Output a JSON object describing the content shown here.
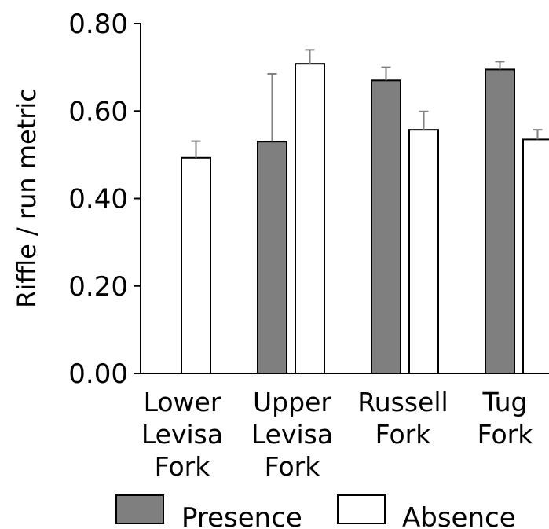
{
  "chart_data": {
    "type": "bar",
    "categories": [
      [
        "Lower",
        "Levisa",
        "Fork"
      ],
      [
        "Upper",
        "Levisa",
        "Fork"
      ],
      [
        "Russell",
        "Fork"
      ],
      [
        "Tug",
        "Fork"
      ]
    ],
    "ylabel": "Riffle / run metric",
    "ylim": [
      0,
      0.8
    ],
    "yticks": [
      "0.00",
      "0.20",
      "0.40",
      "0.60",
      "0.80"
    ],
    "grid": false,
    "legend_position": "bottom",
    "series": [
      {
        "name": "Presence",
        "color": "#7f7f7f",
        "values": [
          null,
          0.53,
          0.67,
          0.695
        ],
        "errors": [
          null,
          0.155,
          0.03,
          0.018
        ]
      },
      {
        "name": "Absence",
        "color": "#ffffff",
        "values": [
          0.493,
          0.708,
          0.557,
          0.535
        ],
        "errors": [
          0.038,
          0.032,
          0.042,
          0.022
        ]
      }
    ]
  }
}
